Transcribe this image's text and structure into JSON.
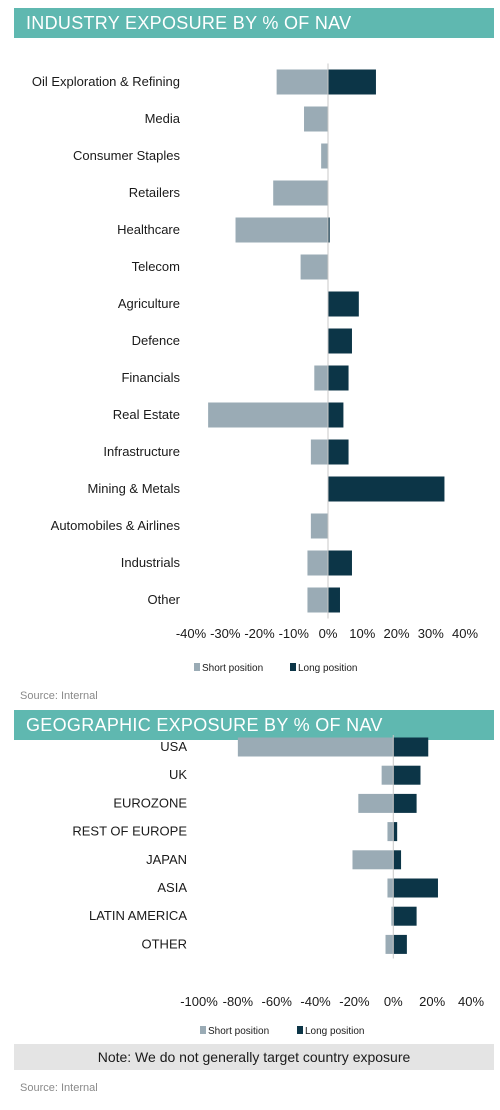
{
  "industry": {
    "title": "INDUSTRY EXPOSURE BY % OF NAV",
    "source": "Source: Internal"
  },
  "geographic": {
    "title": "GEOGRAPHIC EXPOSURE BY % OF NAV",
    "source": "Source: Internal",
    "note": "Note: We do not generally target country exposure"
  },
  "colors": {
    "short": "#9aabb5",
    "long": "#0c3547",
    "banner": "#5fb8b0"
  },
  "chart_data": [
    {
      "type": "bar",
      "orientation": "horizontal",
      "categories": [
        "Oil Exploration & Refining",
        "Media",
        "Consumer Staples",
        "Retailers",
        "Healthcare",
        "Telecom",
        "Agriculture",
        "Defence",
        "Financials",
        "Real Estate",
        "Infrastructure",
        "Mining & Metals",
        "Automobiles & Airlines",
        "Industrials",
        "Other"
      ],
      "series": [
        {
          "name": "Short position",
          "values": [
            -15,
            -7,
            -2,
            -16,
            -27,
            -8,
            0,
            0,
            -4,
            -35,
            -5,
            0,
            -5,
            -6,
            -6
          ]
        },
        {
          "name": "Long position",
          "values": [
            14,
            0,
            0,
            0,
            0.5,
            0,
            9,
            7,
            6,
            4.5,
            6,
            34,
            0,
            7,
            3.5
          ]
        }
      ],
      "xlim": [
        -40,
        40
      ],
      "xticks": [
        "-40%",
        "-30%",
        "-20%",
        "-10%",
        "0%",
        "10%",
        "20%",
        "30%",
        "40%"
      ],
      "legend": "bottom",
      "grid": false
    },
    {
      "type": "bar",
      "orientation": "horizontal",
      "categories": [
        "USA",
        "UK",
        "EUROZONE",
        "REST OF EUROPE",
        "JAPAN",
        "ASIA",
        "LATIN AMERICA",
        "OTHER"
      ],
      "series": [
        {
          "name": "Short position",
          "values": [
            -80,
            -6,
            -18,
            -3,
            -21,
            -3,
            -1,
            -4
          ]
        },
        {
          "name": "Long position",
          "values": [
            18,
            14,
            12,
            2,
            4,
            23,
            12,
            7
          ]
        }
      ],
      "xlim": [
        -100,
        40
      ],
      "xticks": [
        "-100%",
        "-80%",
        "-60%",
        "-40%",
        "-20%",
        "0%",
        "20%",
        "40%"
      ],
      "legend": "bottom",
      "grid": false
    }
  ]
}
